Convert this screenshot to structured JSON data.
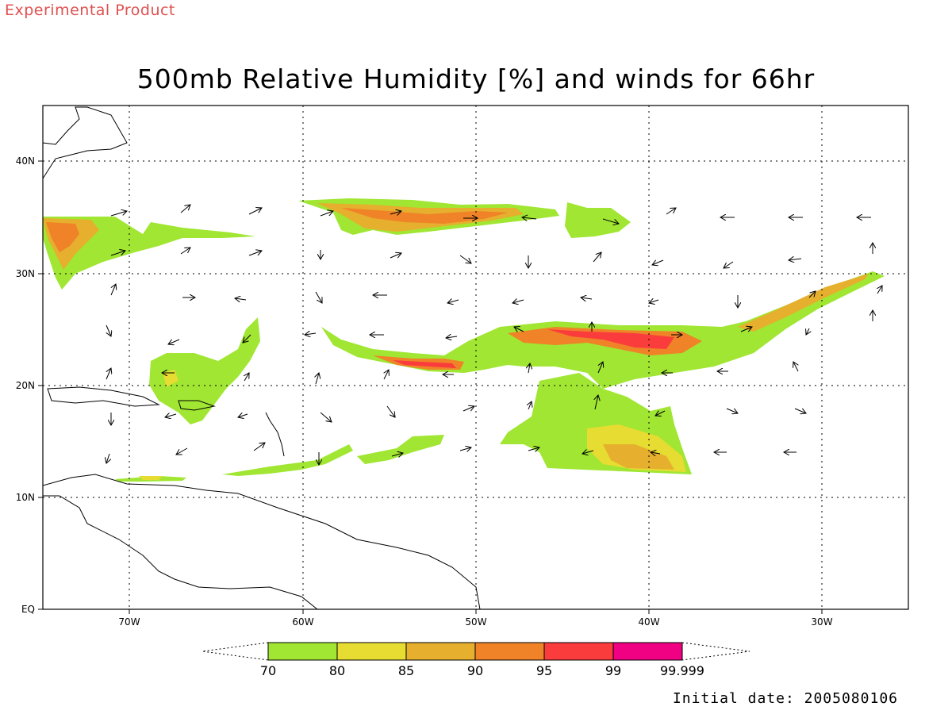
{
  "banner": "Experimental Product",
  "title": "500mb Relative Humidity [%] and winds for 66hr",
  "initial_date": "Initial date: 2005080106",
  "axes": {
    "lon_labels": [
      "70W",
      "60W",
      "50W",
      "40W",
      "30W"
    ],
    "lat_labels": [
      "40N",
      "30N",
      "20N",
      "10N",
      "EQ"
    ],
    "lon_range": [
      -75,
      -25
    ],
    "lat_range": [
      0,
      45
    ],
    "grid": "dotted"
  },
  "legend": {
    "bins": [
      {
        "label": "70",
        "color": "#a0e632"
      },
      {
        "label": "80",
        "color": "#e6dc32"
      },
      {
        "label": "85",
        "color": "#e6af2d"
      },
      {
        "label": "90",
        "color": "#f08228"
      },
      {
        "label": "95",
        "color": "#fa3c3c"
      },
      {
        "label": "99",
        "color": "#f00082"
      }
    ],
    "end_label": "99.999"
  },
  "colors": {
    "rh70": "#a0e632",
    "rh80": "#e6dc32",
    "rh85": "#e6af2d",
    "rh90": "#f08228",
    "rh95": "#fa3c3c",
    "rh99": "#f00082",
    "banner": "#e05050"
  }
}
